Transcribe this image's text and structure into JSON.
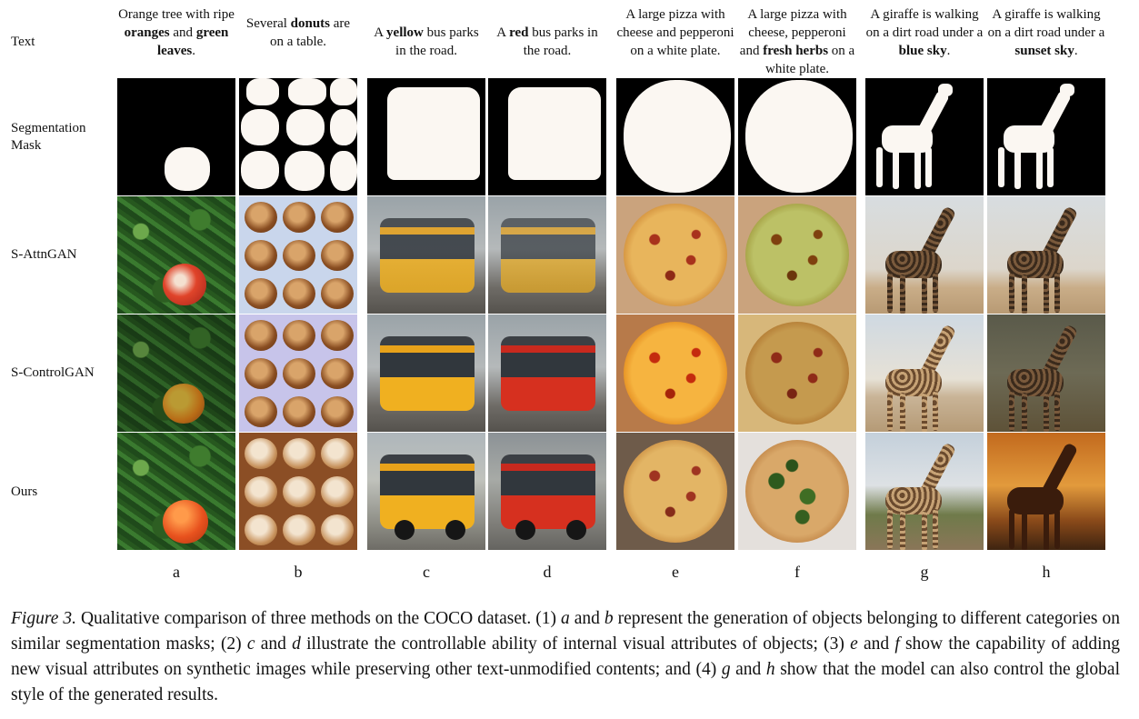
{
  "row_labels": {
    "text": "Text",
    "mask": "Segmentation Mask",
    "attngan": "S-AttnGAN",
    "controlgan": "S-ControlGAN",
    "ours": "Ours"
  },
  "columns": [
    {
      "letter": "a",
      "prompt": [
        [
          "Orange tree with ripe ",
          false
        ],
        [
          "oranges",
          true
        ],
        [
          " and ",
          false
        ],
        [
          "green leaves",
          true
        ],
        [
          ".",
          false
        ]
      ]
    },
    {
      "letter": "b",
      "prompt": [
        [
          "Several ",
          false
        ],
        [
          "donuts",
          true
        ],
        [
          " are on a table.",
          false
        ]
      ]
    },
    {
      "letter": "c",
      "prompt": [
        [
          "A ",
          false
        ],
        [
          "yellow",
          true
        ],
        [
          " bus parks in the road.",
          false
        ]
      ]
    },
    {
      "letter": "d",
      "prompt": [
        [
          "A ",
          false
        ],
        [
          "red",
          true
        ],
        [
          " bus parks in the road.",
          false
        ]
      ]
    },
    {
      "letter": "e",
      "prompt": [
        [
          "A large pizza with cheese and pepperoni on a white plate.",
          false
        ]
      ]
    },
    {
      "letter": "f",
      "prompt": [
        [
          "A large pizza with cheese, pepperoni and ",
          false
        ],
        [
          "fresh herbs",
          true
        ],
        [
          " on a white plate.",
          false
        ]
      ]
    },
    {
      "letter": "g",
      "prompt": [
        [
          "A giraffe is walking on a dirt road under a ",
          false
        ],
        [
          "blue sky",
          true
        ],
        [
          ".",
          false
        ]
      ]
    },
    {
      "letter": "h",
      "prompt": [
        [
          "A giraffe is walking on a dirt road under a ",
          false
        ],
        [
          "sunset sky",
          true
        ],
        [
          ".",
          false
        ]
      ]
    }
  ],
  "caption": {
    "label": "Figure 3.",
    "segments": [
      [
        " Qualitative comparison of three methods on the COCO dataset. (1) ",
        false
      ],
      [
        "a",
        true
      ],
      [
        " and ",
        false
      ],
      [
        "b",
        true
      ],
      [
        " represent the generation of objects belonging to different categories on similar segmentation masks; (2) ",
        false
      ],
      [
        "c",
        true
      ],
      [
        " and ",
        false
      ],
      [
        "d",
        true
      ],
      [
        " illustrate the controllable ability of internal visual attributes of objects; (3) ",
        false
      ],
      [
        "e",
        true
      ],
      [
        " and ",
        false
      ],
      [
        "f",
        true
      ],
      [
        " show the capability of adding new visual attributes on synthetic images while preserving other text-unmodified contents; and (4) ",
        false
      ],
      [
        "g",
        true
      ],
      [
        " and ",
        false
      ],
      [
        "h",
        true
      ],
      [
        " show that the model can also control the global style of the generated results.",
        false
      ]
    ]
  }
}
